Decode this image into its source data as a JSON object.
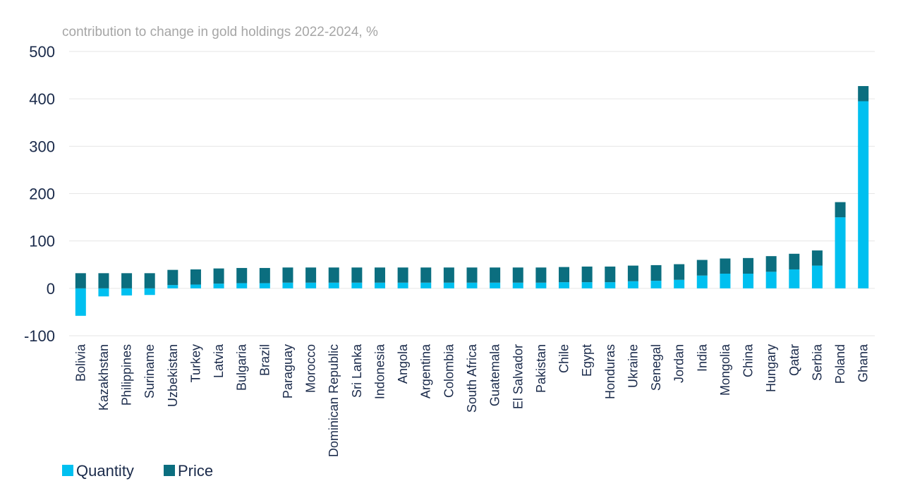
{
  "chart_data": {
    "type": "bar",
    "stacked": true,
    "title": "contribution to change in gold holdings 2022-2024, %",
    "xlabel": "",
    "ylabel": "",
    "ylim": [
      -100,
      500
    ],
    "yticks": [
      500,
      400,
      300,
      200,
      100,
      0,
      -100
    ],
    "grid": true,
    "legend_position": "bottom-left",
    "categories": [
      "Bolivia",
      "Kazakhstan",
      "Philippines",
      "Suriname",
      "Uzbekistan",
      "Turkey",
      "Latvia",
      "Bulgaria",
      "Brazil",
      "Paraguay",
      "Morocco",
      "Dominican Republic",
      "Sri Lanka",
      "Indonesia",
      "Angola",
      "Argentina",
      "Colombia",
      "South Africa",
      "Guatemala",
      "El Salvador",
      "Pakistan",
      "Chile",
      "Egypt",
      "Honduras",
      "Ukraine",
      "Senegal",
      "Jordan",
      "India",
      "Mongolia",
      "China",
      "Hungary",
      "Qatar",
      "Serbia",
      "Poland",
      "Ghana"
    ],
    "series": [
      {
        "name": "Quantity",
        "color": "#00c0f0",
        "values": [
          -58,
          -17,
          -15,
          -14,
          7,
          8,
          10,
          11,
          11,
          12,
          12,
          12,
          12,
          12,
          12,
          12,
          12,
          12,
          12,
          12,
          12,
          13,
          13,
          13,
          15,
          16,
          18,
          27,
          31,
          31,
          35,
          40,
          48,
          150,
          395
        ]
      },
      {
        "name": "Price",
        "color": "#0b6e7f",
        "values": [
          32,
          32,
          32,
          32,
          32,
          32,
          32,
          32,
          32,
          32,
          32,
          32,
          32,
          32,
          32,
          32,
          32,
          32,
          32,
          32,
          32,
          32,
          33,
          33,
          33,
          33,
          33,
          33,
          32,
          33,
          33,
          33,
          32,
          32,
          32
        ]
      }
    ]
  }
}
